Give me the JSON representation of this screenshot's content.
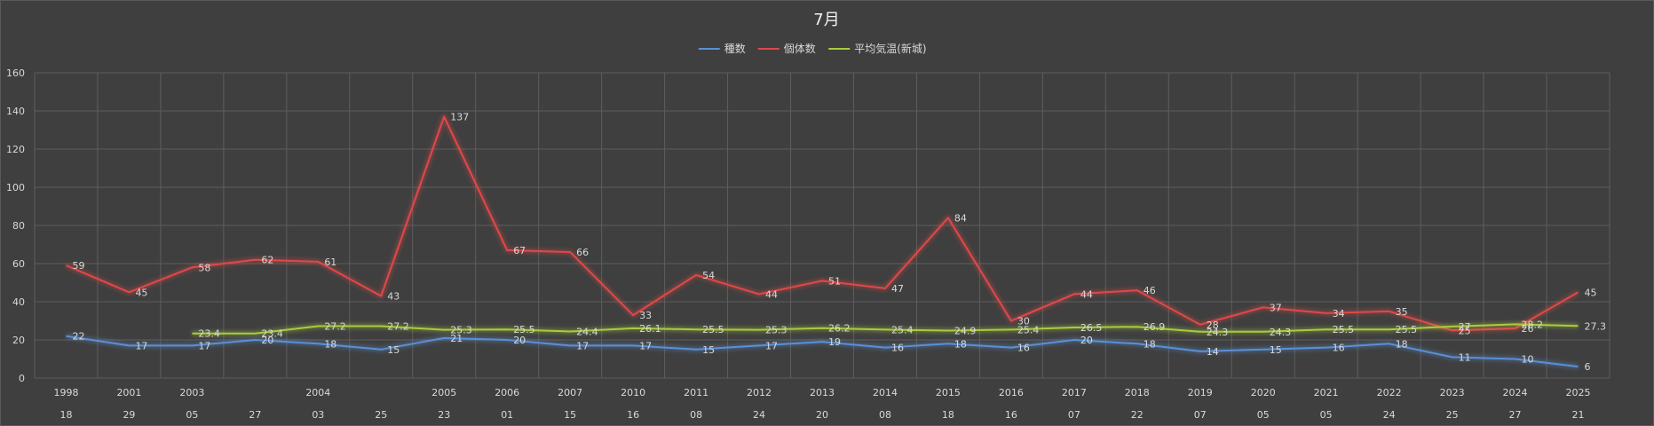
{
  "chart_data": {
    "type": "line",
    "title": "7月",
    "legend_position": "top",
    "grid": true,
    "ylim": [
      0,
      160
    ],
    "yticks": [
      0,
      20,
      40,
      60,
      80,
      100,
      120,
      140,
      160
    ],
    "categories": [
      {
        "year": "1998",
        "day": "18"
      },
      {
        "year": "2001",
        "day": "29"
      },
      {
        "year": "2003",
        "day": "05"
      },
      {
        "year": "",
        "day": "27"
      },
      {
        "year": "2004",
        "day": "03"
      },
      {
        "year": "",
        "day": "25"
      },
      {
        "year": "2005",
        "day": "23"
      },
      {
        "year": "2006",
        "day": "01"
      },
      {
        "year": "2007",
        "day": "15"
      },
      {
        "year": "2010",
        "day": "16"
      },
      {
        "year": "2011",
        "day": "08"
      },
      {
        "year": "2012",
        "day": "24"
      },
      {
        "year": "2013",
        "day": "20"
      },
      {
        "year": "2014",
        "day": "08"
      },
      {
        "year": "2015",
        "day": "18"
      },
      {
        "year": "2016",
        "day": "16"
      },
      {
        "year": "2017",
        "day": "07"
      },
      {
        "year": "2018",
        "day": "22"
      },
      {
        "year": "2019",
        "day": "07"
      },
      {
        "year": "2020",
        "day": "05"
      },
      {
        "year": "2021",
        "day": "05"
      },
      {
        "year": "2022",
        "day": "24"
      },
      {
        "year": "2023",
        "day": "25"
      },
      {
        "year": "2024",
        "day": "27"
      },
      {
        "year": "2025",
        "day": "21"
      }
    ],
    "series": [
      {
        "name": "種数",
        "color": "#5b8fd4",
        "values": [
          22,
          17,
          17,
          20,
          18,
          15,
          21,
          20,
          17,
          17,
          15,
          17,
          19,
          16,
          18,
          16,
          20,
          18,
          14,
          15,
          16,
          18,
          11,
          10,
          6
        ]
      },
      {
        "name": "個体数",
        "color": "#e04848",
        "values": [
          59,
          45,
          58,
          62,
          61,
          43,
          137,
          67,
          66,
          33,
          54,
          44,
          51,
          47,
          84,
          30,
          44,
          46,
          28,
          37,
          34,
          35,
          25,
          26,
          45
        ]
      },
      {
        "name": "平均気温(新城)",
        "color": "#a8cc3c",
        "values": [
          null,
          null,
          23.4,
          23.4,
          27.2,
          27.2,
          25.3,
          25.5,
          24.4,
          26.1,
          25.5,
          25.3,
          26.2,
          25.4,
          24.9,
          25.4,
          26.5,
          26.9,
          24.3,
          24.3,
          25.5,
          25.5,
          27,
          28.2,
          27.3
        ]
      }
    ]
  }
}
